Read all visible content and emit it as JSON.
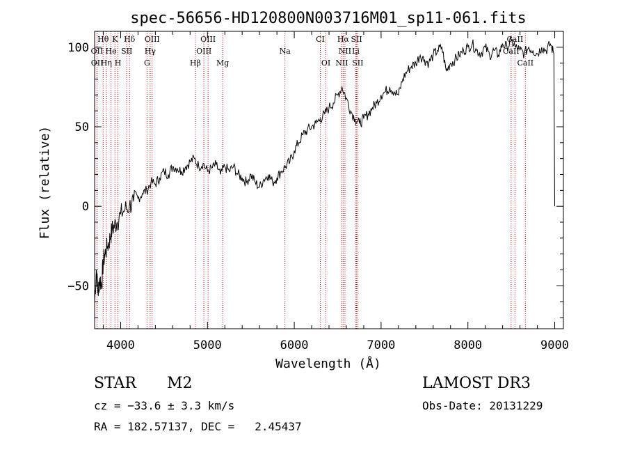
{
  "chart_data": {
    "type": "line",
    "title": "spec-56656-HD120800N003716M01_sp11-061.fits",
    "xlabel": "Wavelength (Å)",
    "ylabel": "Flux (relative)",
    "xlim": [
      3700,
      9100
    ],
    "ylim": [
      -77,
      110
    ],
    "x_ticks": [
      4000,
      5000,
      6000,
      7000,
      8000,
      9000
    ],
    "y_ticks": [
      -50,
      0,
      50,
      100
    ],
    "grid": false,
    "line_color": "#000000",
    "marker_color": "#cc0000",
    "series": [
      {
        "x": [
          3700,
          3720,
          3740,
          3760,
          3780,
          3800,
          3820,
          3850,
          3880,
          3900,
          3930,
          3960,
          4000,
          4050,
          4100,
          4150,
          4200,
          4250,
          4300,
          4350,
          4400,
          4450,
          4500,
          4550,
          4600,
          4650,
          4700,
          4750,
          4800,
          4850,
          4900,
          4950,
          5000,
          5050,
          5100,
          5150,
          5200,
          5250,
          5300,
          5350,
          5400,
          5450,
          5500,
          5550,
          5600,
          5650,
          5700,
          5750,
          5800,
          5850,
          5900,
          5950,
          6000,
          6050,
          6100,
          6150,
          6200,
          6250,
          6300,
          6350,
          6400,
          6450,
          6500,
          6550,
          6600,
          6650,
          6700,
          6750,
          6800,
          6850,
          6900,
          6950,
          7000,
          7050,
          7100,
          7150,
          7200,
          7250,
          7300,
          7350,
          7400,
          7450,
          7500,
          7550,
          7600,
          7650,
          7700,
          7750,
          7800,
          7850,
          7900,
          7950,
          8000,
          8050,
          8100,
          8150,
          8200,
          8250,
          8300,
          8350,
          8400,
          8450,
          8500,
          8550,
          8600,
          8650,
          8700,
          8750,
          8800,
          8850,
          8900,
          8950,
          8990,
          9000
        ],
        "y": [
          -60,
          -40,
          -55,
          -45,
          -50,
          -35,
          -30,
          -25,
          -20,
          -15,
          -12,
          -10,
          -5,
          -2,
          0,
          3,
          5,
          8,
          10,
          15,
          14,
          18,
          22,
          20,
          25,
          24,
          22,
          25,
          28,
          30,
          25,
          27,
          22,
          24,
          26,
          20,
          25,
          22,
          25,
          20,
          18,
          15,
          20,
          15,
          12,
          17,
          20,
          15,
          18,
          22,
          25,
          28,
          35,
          40,
          45,
          48,
          50,
          52,
          55,
          58,
          62,
          65,
          70,
          75,
          68,
          60,
          55,
          52,
          55,
          58,
          62,
          65,
          70,
          72,
          75,
          72,
          70,
          80,
          85,
          88,
          90,
          95,
          92,
          90,
          95,
          98,
          100,
          85,
          90,
          92,
          95,
          98,
          100,
          102,
          98,
          96,
          100,
          95,
          98,
          95,
          102,
          100,
          104,
          100,
          98,
          96,
          100,
          98,
          96,
          100,
          98,
          102,
          96,
          0
        ]
      }
    ],
    "lines": [
      {
        "label": "Hθ",
        "x": 3798,
        "row": 0
      },
      {
        "label": "K",
        "x": 3934,
        "row": 0
      },
      {
        "label": "Hδ",
        "x": 4102,
        "row": 0
      },
      {
        "label": "OIII",
        "x": 4363,
        "row": 0
      },
      {
        "label": "OIII",
        "x": 5007,
        "row": 0
      },
      {
        "label": "CI",
        "x": 6300,
        "row": 0
      },
      {
        "label": "Hα",
        "x": 6563,
        "row": 0
      },
      {
        "label": "SII",
        "x": 6717,
        "row": 0
      },
      {
        "label": "CaII",
        "x": 8542,
        "row": 0
      },
      {
        "label": "OII",
        "x": 3727,
        "row": 1
      },
      {
        "label": "He",
        "x": 3889,
        "row": 1
      },
      {
        "label": "SII",
        "x": 4070,
        "row": 1
      },
      {
        "label": "Hγ",
        "x": 4340,
        "row": 1
      },
      {
        "label": "OIII",
        "x": 4959,
        "row": 1
      },
      {
        "label": "Na",
        "x": 5893,
        "row": 1
      },
      {
        "label": "NII",
        "x": 6584,
        "row": 1
      },
      {
        "label": "Li",
        "x": 6708,
        "row": 1
      },
      {
        "label": "CaII",
        "x": 8498,
        "row": 1
      },
      {
        "label": "OII",
        "x": 3729,
        "row": 2
      },
      {
        "label": "Hη",
        "x": 3835,
        "row": 2
      },
      {
        "label": "H",
        "x": 3969,
        "row": 2
      },
      {
        "label": "G",
        "x": 4304,
        "row": 2
      },
      {
        "label": "Hβ",
        "x": 4861,
        "row": 2
      },
      {
        "label": "Mg",
        "x": 5175,
        "row": 2
      },
      {
        "label": "OI",
        "x": 6364,
        "row": 2
      },
      {
        "label": "NII",
        "x": 6548,
        "row": 2
      },
      {
        "label": "SII",
        "x": 6731,
        "row": 2
      },
      {
        "label": "CaII",
        "x": 8662,
        "row": 2
      }
    ]
  },
  "info": {
    "class": "STAR",
    "subclass": "M2",
    "survey": "LAMOST DR3",
    "cz": "cz = −33.6 ± 3.3 km/s",
    "obs_date": "Obs-Date: 20131229",
    "coords": "RA = 182.57137, DEC =   2.45437"
  }
}
